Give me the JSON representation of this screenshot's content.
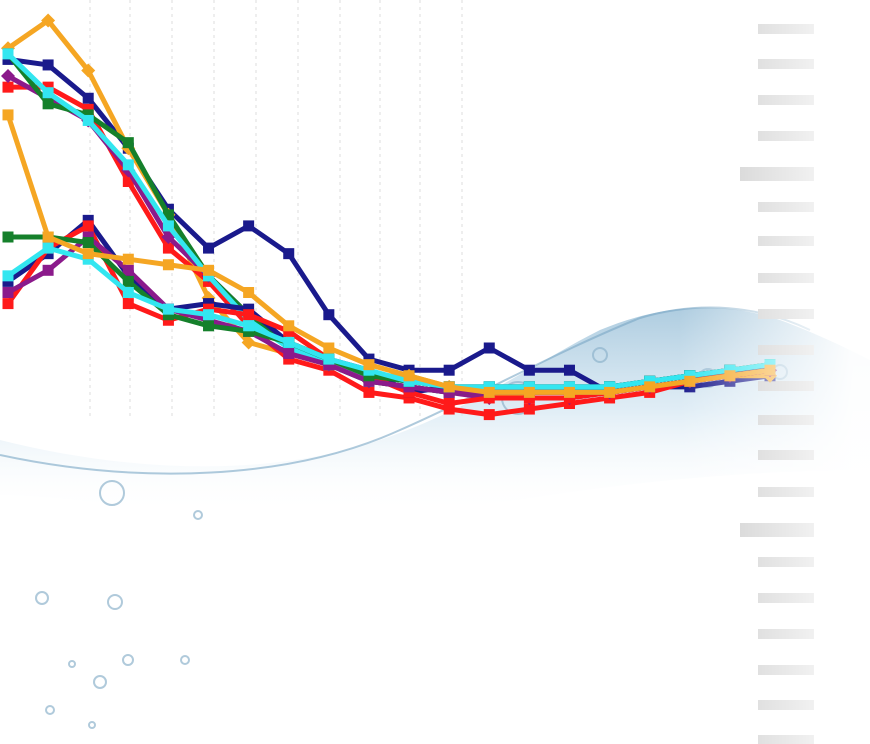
{
  "chart_data": {
    "type": "line",
    "title": "",
    "xlabel": "",
    "ylabel": "",
    "x": [
      0,
      1,
      2,
      3,
      4,
      5,
      6,
      7,
      8,
      9,
      10,
      11,
      12,
      13,
      14,
      15,
      16,
      17,
      18,
      19
    ],
    "xlim": [
      0,
      19
    ],
    "ylim": [
      0,
      100
    ],
    "grid": true,
    "legend": "none",
    "series": [
      {
        "color": "#1a1a8c",
        "values": [
          92,
          91,
          85,
          76,
          65,
          58,
          62,
          57,
          46,
          38,
          36,
          36,
          40,
          36,
          36,
          32,
          33,
          33,
          34,
          35
        ]
      },
      {
        "color": "#f5a623",
        "values": [
          94,
          99,
          90,
          76,
          64,
          49,
          41,
          39,
          37,
          35,
          35,
          33,
          31,
          32,
          32,
          32,
          33,
          34,
          35,
          35
        ]
      },
      {
        "color": "#ff1a1a",
        "values": [
          87,
          87,
          83,
          70,
          58,
          52,
          44,
          38,
          36,
          32,
          31,
          29,
          28,
          29,
          30,
          31,
          32,
          34,
          36,
          37
        ]
      },
      {
        "color": "#8b1a8b",
        "values": [
          89,
          85,
          81,
          72,
          60,
          53,
          46,
          40,
          37,
          34,
          33,
          32,
          31,
          31,
          31,
          32,
          33,
          34,
          35,
          36
        ]
      },
      {
        "color": "#15802b",
        "values": [
          93,
          84,
          82,
          77,
          64,
          53,
          46,
          41,
          37,
          34,
          33,
          32,
          32,
          32,
          32,
          33,
          34,
          35,
          36,
          37
        ]
      },
      {
        "color": "#33e6f0",
        "values": [
          93,
          86,
          81,
          73,
          62,
          53,
          45,
          40,
          37,
          35,
          34,
          33,
          32,
          32,
          32,
          33,
          34,
          35,
          36,
          37
        ]
      },
      {
        "color": "#1a1a8c",
        "values": [
          52,
          57,
          63,
          53,
          47,
          48,
          47,
          41,
          38,
          36,
          32,
          33,
          33,
          33,
          33,
          33,
          34,
          35,
          36,
          36
        ]
      },
      {
        "color": "#ff1a1a",
        "values": [
          48,
          58,
          62,
          48,
          45,
          47,
          46,
          43,
          38,
          35,
          32,
          30,
          31,
          31,
          31,
          32,
          33,
          34,
          35,
          36
        ]
      },
      {
        "color": "#8b1a8b",
        "values": [
          50,
          54,
          60,
          54,
          47,
          45,
          43,
          39,
          37,
          34,
          33,
          32,
          32,
          32,
          32,
          32,
          33,
          34,
          35,
          36
        ]
      },
      {
        "color": "#15802b",
        "values": [
          60,
          60,
          59,
          52,
          46,
          44,
          43,
          41,
          38,
          35,
          34,
          33,
          33,
          33,
          33,
          33,
          34,
          35,
          36,
          37
        ]
      },
      {
        "color": "#33e6f0",
        "values": [
          53,
          58,
          56,
          50,
          47,
          46,
          44,
          41,
          38,
          36,
          34,
          33,
          33,
          33,
          33,
          33,
          34,
          35,
          36,
          37
        ]
      },
      {
        "color": "#f5a623",
        "values": [
          82,
          60,
          57,
          56,
          55,
          54,
          50,
          44,
          40,
          37,
          35,
          33,
          32,
          32,
          32,
          32,
          33,
          34,
          35,
          36
        ]
      }
    ]
  }
}
